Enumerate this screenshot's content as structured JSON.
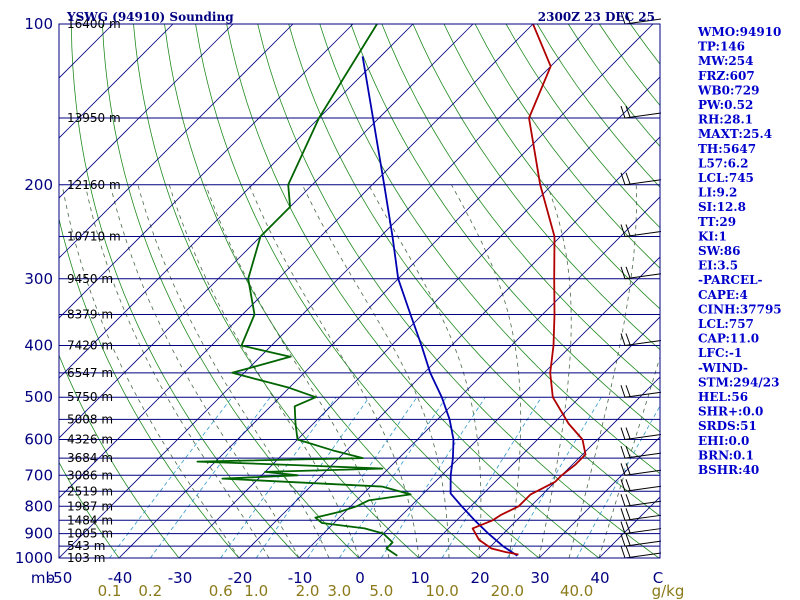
{
  "header": {
    "station": "YSWG (94910) Sounding",
    "time": "2300Z 23 DEC 25"
  },
  "colors": {
    "isobar": "#000080",
    "isotherm": "#000080",
    "dry_adiabat": "#228b22",
    "moist_adiabat": "#4a6a4a",
    "mixing_ratio": "#3399cc",
    "temperature": "#b00000",
    "dewpoint": "#006400",
    "parcel": "#0000b0",
    "wind": "#000000",
    "index_text": "#0000cc"
  },
  "chart_data": {
    "type": "skew-t log-p sounding",
    "axes": {
      "pressure_unit_label": "mb",
      "temperature_unit_label": "C",
      "mixing_ratio_unit_label": "g/kg",
      "pressure_range": [
        1000,
        100
      ],
      "temperature_range": [
        -50,
        50
      ]
    },
    "pressure_ticks": [
      {
        "p": 100,
        "label": "100"
      },
      {
        "p": 200,
        "label": "200"
      },
      {
        "p": 300,
        "label": "300"
      },
      {
        "p": 400,
        "label": "400"
      },
      {
        "p": 500,
        "label": "500"
      },
      {
        "p": 600,
        "label": "600"
      },
      {
        "p": 700,
        "label": "700"
      },
      {
        "p": 800,
        "label": "800"
      },
      {
        "p": 900,
        "label": "900"
      },
      {
        "p": 1000,
        "label": "1000"
      }
    ],
    "temperature_ticks": [
      "-50",
      "-40",
      "-30",
      "-20",
      "-10",
      "0",
      "10",
      "20",
      "30",
      "40"
    ],
    "mixing_ratio_labels": [
      "0.1",
      "0.2",
      "0.6",
      "1.0",
      "2.0",
      "3.0",
      "5.0",
      "10.0",
      "20.0",
      "40.0"
    ],
    "height_labels": [
      {
        "p": 100,
        "label": "16400 m"
      },
      {
        "p": 150,
        "label": "13950 m"
      },
      {
        "p": 200,
        "label": "12160 m"
      },
      {
        "p": 250,
        "label": "10710 m"
      },
      {
        "p": 300,
        "label": "9450 m"
      },
      {
        "p": 350,
        "label": "8379 m"
      },
      {
        "p": 400,
        "label": "7420 m"
      },
      {
        "p": 450,
        "label": "6547 m"
      },
      {
        "p": 500,
        "label": "5750 m"
      },
      {
        "p": 550,
        "label": "5008 m"
      },
      {
        "p": 600,
        "label": "4326 m"
      },
      {
        "p": 650,
        "label": "3684 m"
      },
      {
        "p": 700,
        "label": "3086 m"
      },
      {
        "p": 750,
        "label": "2519 m"
      },
      {
        "p": 800,
        "label": "1987 m"
      },
      {
        "p": 850,
        "label": "1484 m"
      },
      {
        "p": 900,
        "label": "1005 m"
      },
      {
        "p": 950,
        "label": "543 m"
      },
      {
        "p": 1000,
        "label": "103 m"
      }
    ],
    "temperature_profile": [
      [
        985,
        26
      ],
      [
        975,
        23.5
      ],
      [
        960,
        20.5
      ],
      [
        925,
        17
      ],
      [
        880,
        14
      ],
      [
        850,
        16
      ],
      [
        830,
        16.5
      ],
      [
        800,
        18
      ],
      [
        760,
        18
      ],
      [
        720,
        20
      ],
      [
        700,
        20
      ],
      [
        670,
        20.5
      ],
      [
        640,
        20.5
      ],
      [
        600,
        17.5
      ],
      [
        560,
        12.5
      ],
      [
        500,
        5.5
      ],
      [
        450,
        1
      ],
      [
        400,
        -3
      ],
      [
        350,
        -8
      ],
      [
        300,
        -14
      ],
      [
        250,
        -21
      ],
      [
        200,
        -32
      ],
      [
        150,
        -45
      ],
      [
        120,
        -50
      ],
      [
        100,
        -60
      ]
    ],
    "dewpoint_profile": [
      [
        990,
        6
      ],
      [
        960,
        3
      ],
      [
        935,
        3
      ],
      [
        900,
        0
      ],
      [
        880,
        -4
      ],
      [
        860,
        -12
      ],
      [
        840,
        -14
      ],
      [
        820,
        -11
      ],
      [
        800,
        -9
      ],
      [
        780,
        -8
      ],
      [
        760,
        -2
      ],
      [
        735,
        -8
      ],
      [
        710,
        -36
      ],
      [
        700,
        -24
      ],
      [
        690,
        -30
      ],
      [
        680,
        -11
      ],
      [
        670,
        -26
      ],
      [
        660,
        -43
      ],
      [
        650,
        -16
      ],
      [
        630,
        -22
      ],
      [
        600,
        -30
      ],
      [
        560,
        -33
      ],
      [
        520,
        -36
      ],
      [
        500,
        -34
      ],
      [
        480,
        -40
      ],
      [
        450,
        -52
      ],
      [
        420,
        -45
      ],
      [
        400,
        -55
      ],
      [
        350,
        -58
      ],
      [
        300,
        -65
      ],
      [
        250,
        -70
      ],
      [
        220,
        -70
      ],
      [
        200,
        -74
      ],
      [
        150,
        -80
      ],
      [
        100,
        -86
      ]
    ],
    "parcel_profile": [
      [
        990,
        26
      ],
      [
        950,
        22
      ],
      [
        900,
        17.5
      ],
      [
        850,
        13
      ],
      [
        800,
        8.5
      ],
      [
        757,
        4.5
      ],
      [
        700,
        1.5
      ],
      [
        650,
        -1
      ],
      [
        600,
        -4
      ],
      [
        550,
        -8
      ],
      [
        500,
        -13
      ],
      [
        450,
        -19
      ],
      [
        400,
        -25
      ],
      [
        350,
        -32
      ],
      [
        300,
        -40
      ],
      [
        250,
        -48
      ],
      [
        200,
        -58
      ],
      [
        150,
        -71
      ],
      [
        115,
        -83
      ]
    ],
    "wind_levels": [
      1000,
      950,
      900,
      850,
      800,
      750,
      700,
      650,
      600,
      500,
      400,
      300,
      250,
      200,
      150,
      100
    ],
    "indices": [
      "WMO:94910",
      "TP:146",
      "MW:254",
      "FRZ:607",
      "WB0:729",
      "PW:0.52",
      "RH:28.1",
      "MAXT:25.4",
      "TH:5647",
      "L57:6.2",
      "LCL:745",
      "LI:9.2",
      "SI:12.8",
      "TT:29",
      "KI:1",
      "SW:86",
      "EI:3.5",
      "-PARCEL-",
      "CAPE:4",
      "CINH:37795",
      "LCL:757",
      "CAP:11.0",
      "LFC:-1",
      "-WIND-",
      "STM:294/23",
      "HEL:56",
      "SHR+:0.0",
      "SRDS:51",
      "EHI:0.0",
      "BRN:0.1",
      "BSHR:40"
    ]
  }
}
